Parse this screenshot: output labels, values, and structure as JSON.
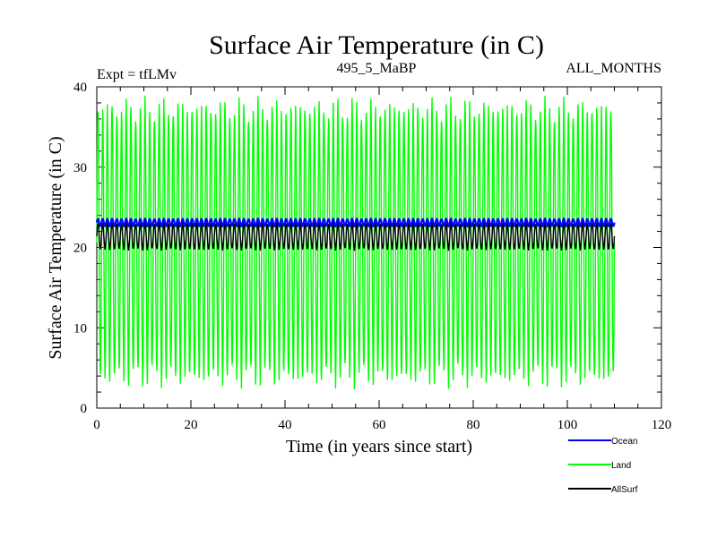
{
  "chart_data": {
    "type": "line",
    "title": "Surface Air Temperature (in C)",
    "subtitle_left": "Expt = tfLMv",
    "subtitle_center": "495_5_MaBP",
    "subtitle_right": "ALL_MONTHS",
    "xlabel": "Time (in years since start)",
    "ylabel": "Surface Air Temperature (in C)",
    "xlim": [
      0,
      120
    ],
    "ylim": [
      0,
      40
    ],
    "xticks": [
      0,
      20,
      40,
      60,
      80,
      100,
      120
    ],
    "yticks": [
      0,
      10,
      20,
      30,
      40
    ],
    "duration_years": 110,
    "series": [
      {
        "name": "Ocean",
        "color": "#0000ff",
        "mean": 23.1,
        "amplitude": 0.45,
        "period_years": 1
      },
      {
        "name": "Land",
        "color": "#00ff00",
        "mean": 20.6,
        "amplitude": 16.6,
        "period_years": 1
      },
      {
        "name": "AllSurf",
        "color": "#000000",
        "mean": 21.4,
        "amplitude": 1.6,
        "period_years": 1
      }
    ],
    "legend": {
      "position": "bottom-right",
      "entries": [
        "Ocean",
        "Land",
        "AllSurf"
      ]
    }
  }
}
